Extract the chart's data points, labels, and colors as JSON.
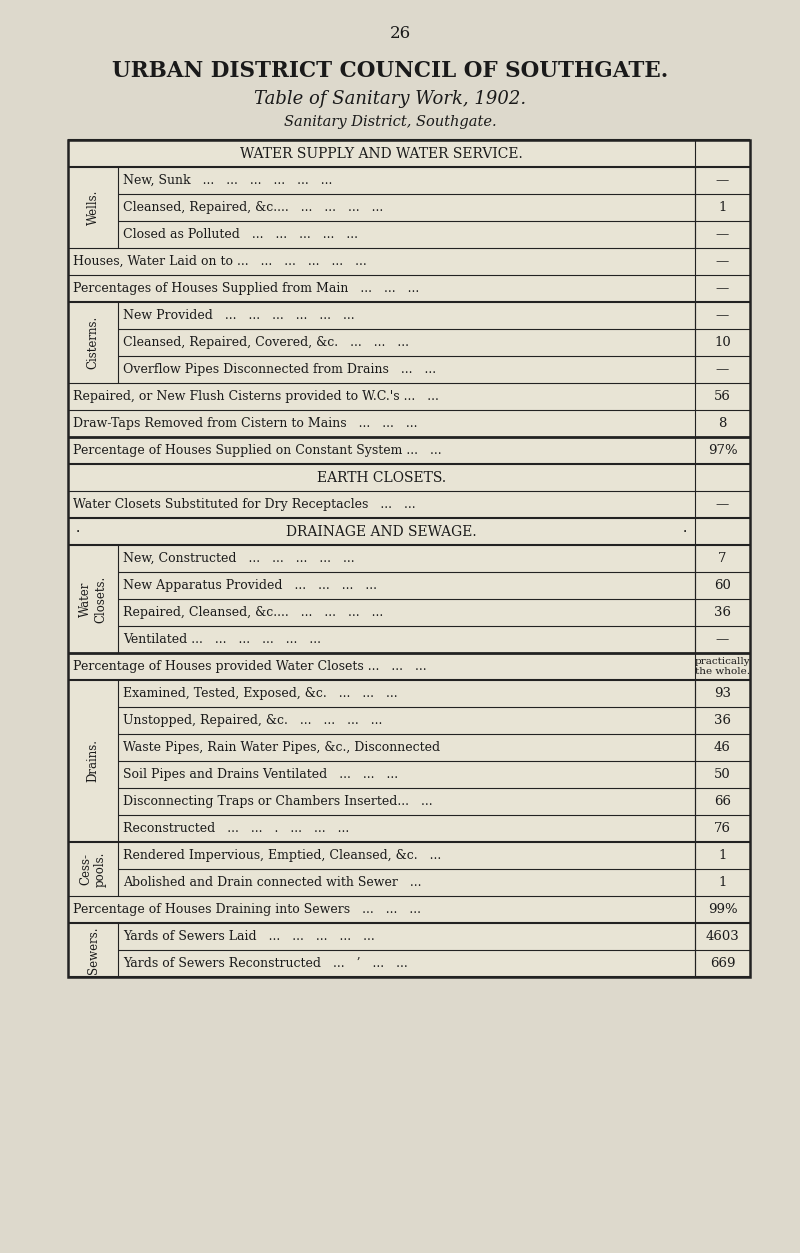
{
  "page_number": "26",
  "title1": "URBAN DISTRICT COUNCIL OF SOUTHGATE.",
  "title2": "Table of Sanitary Work, 1902.",
  "title3": "Sanitary District, Southgate.",
  "bg_color": "#ddd9cc",
  "table_bg": "#e8e4d5",
  "sections": [
    {
      "type": "section_header",
      "text": "WATER SUPPLY AND WATER SERVICE."
    },
    {
      "type": "subgroup_rows",
      "group_label": "Wells.",
      "rows": [
        {
          "text": "New, Sunk   ...   ...   ...   ...   ...   ...",
          "value": "—"
        },
        {
          "text": "Cleansed, Repaired, &c....   ...   ...   ...   ...",
          "value": "1"
        },
        {
          "text": "Closed as Polluted   ...   ...   ...   ...   ...",
          "value": "—"
        }
      ]
    },
    {
      "type": "full_row",
      "text": "Houses, Water Laid on to ...   ...   ...   ...   ...   ...",
      "value": "—"
    },
    {
      "type": "full_row",
      "text": "Percentages of Houses Supplied from Main   ...   ...   ...",
      "value": "—"
    },
    {
      "type": "subgroup_rows",
      "group_label": "Cisterns.",
      "rows": [
        {
          "text": "New Provided   ...   ...   ...   ...   ...   ...",
          "value": "—"
        },
        {
          "text": "Cleansed, Repaired, Covered, &c.   ...   ...   ...",
          "value": "10"
        },
        {
          "text": "Overflow Pipes Disconnected from Drains   ...   ...",
          "value": "—"
        }
      ]
    },
    {
      "type": "full_row",
      "text": "Repaired, or New Flush Cisterns provided to W.C.'s ...   ...",
      "value": "56"
    },
    {
      "type": "full_row",
      "text": "Draw-Taps Removed from Cistern to Mains   ...   ...   ...",
      "value": "8"
    },
    {
      "type": "full_row",
      "text": "Percentage of Houses Supplied on Constant System ...   ...",
      "value": "97%",
      "thick_top": true
    },
    {
      "type": "section_header",
      "text": "EARTH CLOSETS."
    },
    {
      "type": "full_row",
      "text": "Water Closets Substituted for Dry Receptacles   ...   ...",
      "value": "—"
    },
    {
      "type": "section_header",
      "text": "DRAINAGE AND SEWAGE.",
      "dot_prefix": true
    },
    {
      "type": "subgroup_rows",
      "group_label": "Water\nClosets.",
      "rows": [
        {
          "text": "New, Constructed   ...   ...   ...   ...   ...",
          "value": "7"
        },
        {
          "text": "New Apparatus Provided   ...   ...   ...   ...",
          "value": "60"
        },
        {
          "text": "Repaired, Cleansed, &c....   ...   ...   ...   ...",
          "value": "36"
        },
        {
          "text": "Ventilated ...   ...   ...   ...   ...   ...",
          "value": "—"
        }
      ]
    },
    {
      "type": "full_row",
      "text": "Percentage of Houses provided Water Closets ...   ...   ...",
      "value": "practically\nthe whole.",
      "thick_top": true,
      "value_small": true
    },
    {
      "type": "subgroup_rows",
      "group_label": "Drains.",
      "rows": [
        {
          "text": "Examined, Tested, Exposed, &c.   ...   ...   ...",
          "value": "93"
        },
        {
          "text": "Unstopped, Repaired, &c.   ...   ...   ...   ...",
          "value": "36"
        },
        {
          "text": "Waste Pipes, Rain Water Pipes, &c., Disconnected",
          "value": "46"
        },
        {
          "text": "Soil Pipes and Drains Ventilated   ...   ...   ...",
          "value": "50"
        },
        {
          "text": "Disconnecting Traps or Chambers Inserted...   ...",
          "value": "66"
        },
        {
          "text": "Reconstructed   ...   ...   .   ...   ...   ...",
          "value": "76"
        }
      ]
    },
    {
      "type": "subgroup_rows",
      "group_label": "Cess-\npools.",
      "rows": [
        {
          "text": "Rendered Impervious, Emptied, Cleansed, &c.   ...",
          "value": "1"
        },
        {
          "text": "Abolished and Drain connected with Sewer   ...",
          "value": "1"
        }
      ]
    },
    {
      "type": "full_row",
      "text": "Percentage of Houses Draining into Sewers   ...   ...   ...",
      "value": "99%"
    },
    {
      "type": "subgroup_rows",
      "group_label": "Sewers.",
      "rows": [
        {
          "text": "Yards of Sewers Laid   ...   ...   ...   ...   ...",
          "value": "4603"
        },
        {
          "text": "Yards of Sewers Reconstructed   ...   ’   ...   ...",
          "value": "669"
        }
      ]
    }
  ]
}
